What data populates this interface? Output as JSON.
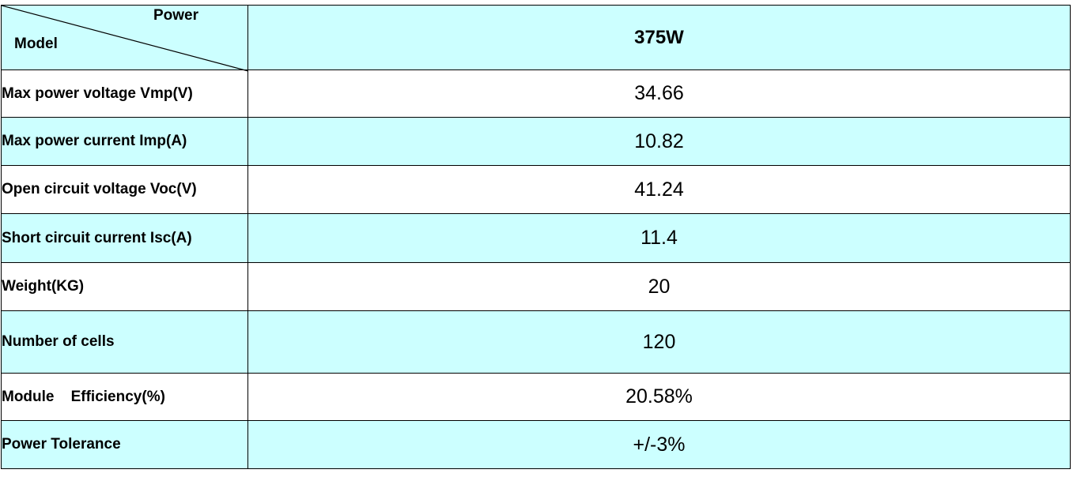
{
  "table": {
    "header": {
      "corner_top": "Power",
      "corner_bottom": "Model",
      "value": "375W"
    },
    "rows": [
      {
        "label": "Max power voltage Vmp(V)",
        "value": "34.66"
      },
      {
        "label": "Max power current Imp(A)",
        "value": "10.82"
      },
      {
        "label": "Open circuit voltage Voc(V)",
        "value": "41.24"
      },
      {
        "label": "Short circuit current Isc(A)",
        "value": "11.4"
      },
      {
        "label": "Weight(KG)",
        "value": "20"
      },
      {
        "label": "Number of cells",
        "value": "120"
      },
      {
        "label": "Module    Efficiency(%)",
        "value": "20.58%"
      },
      {
        "label": "Power Tolerance",
        "value": "+/-3%"
      }
    ],
    "colors": {
      "cyan_row": "#ccffff",
      "white_row": "#ffffff",
      "border": "#000000"
    }
  }
}
